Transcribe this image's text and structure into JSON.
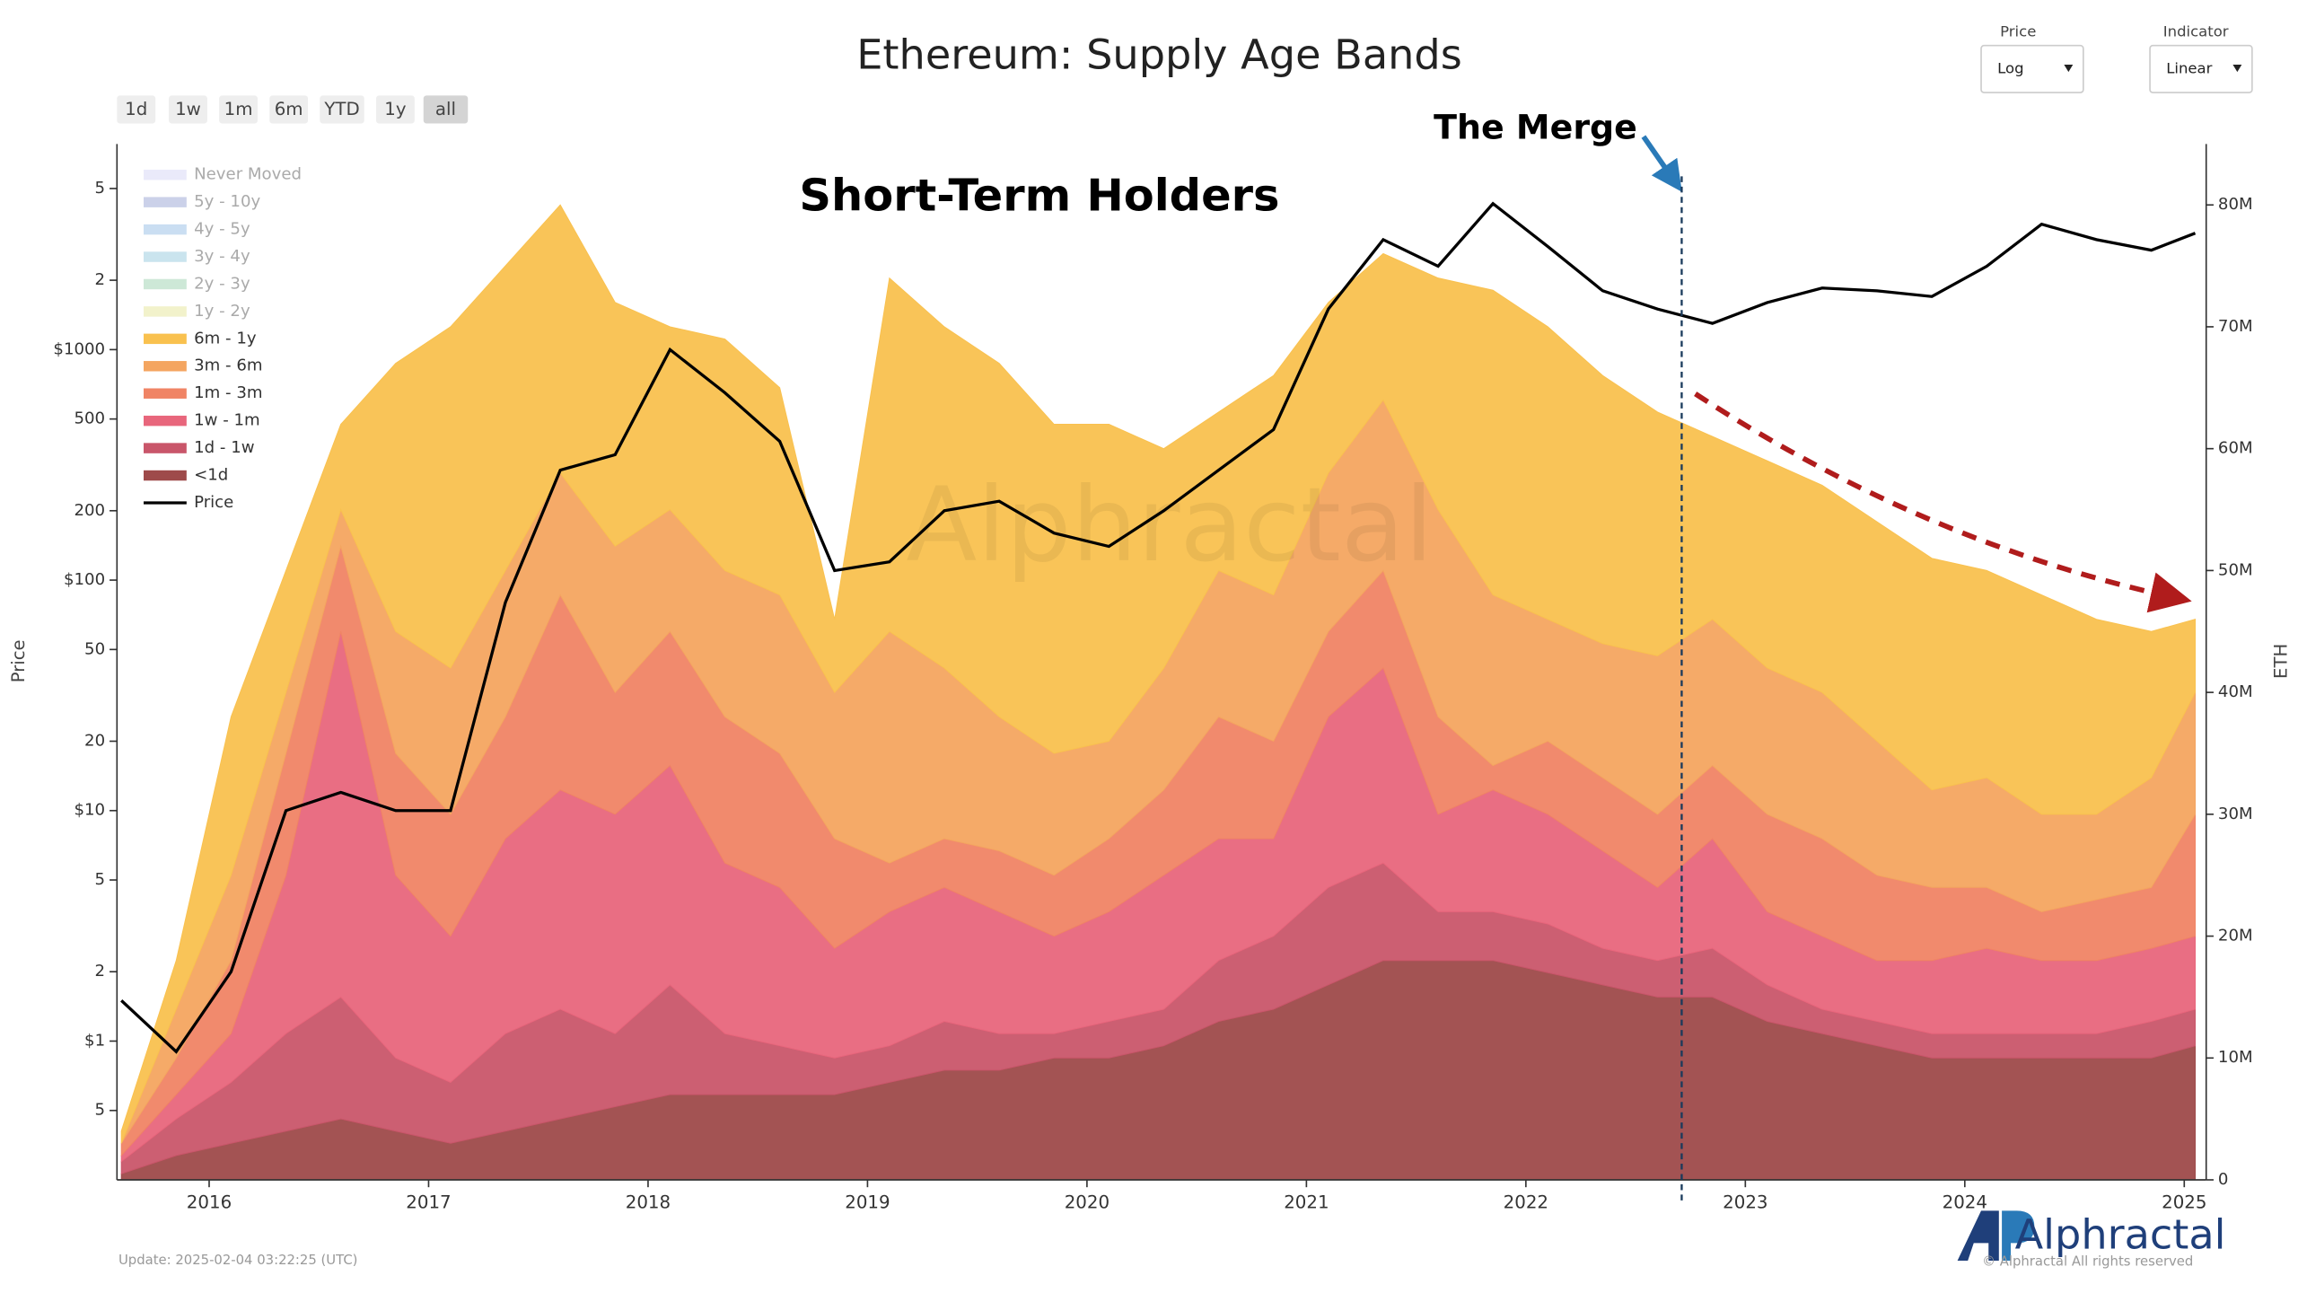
{
  "ui": {
    "range_buttons": [
      "1d",
      "1w",
      "1m",
      "6m",
      "YTD",
      "1y",
      "all"
    ],
    "active_range": 6,
    "price_control": {
      "label": "Price",
      "value": "Log"
    },
    "indicator_control": {
      "label": "Indicator",
      "value": "Linear"
    },
    "update": "Update: 2025-02-04 03:22:25 (UTC)",
    "logo": "Alphractal",
    "copyright": "© Alphractal All rights reserved",
    "watermark": "Alphractal"
  },
  "chart_data": {
    "type": "stacked-area",
    "title": "Ethereum: Supply Age Bands",
    "annotation": "Short-Term Holders",
    "event": {
      "label": "The Merge",
      "x": 2022.71
    },
    "y_label": "Price",
    "y2_label": "ETH",
    "log_scale_y": true,
    "x": [
      2015.6,
      2015.85,
      2016.1,
      2016.35,
      2016.6,
      2016.85,
      2017.1,
      2017.35,
      2017.6,
      2017.85,
      2018.1,
      2018.35,
      2018.6,
      2018.85,
      2019.1,
      2019.35,
      2019.6,
      2019.85,
      2020.1,
      2020.35,
      2020.6,
      2020.85,
      2021.1,
      2021.35,
      2021.6,
      2021.85,
      2022.1,
      2022.35,
      2022.6,
      2022.85,
      2023.1,
      2023.35,
      2023.6,
      2023.85,
      2024.1,
      2024.35,
      2024.6,
      2024.85,
      2025.05
    ],
    "xlim": [
      2015.58,
      2025.1
    ],
    "xticks": [
      2016,
      2017,
      2018,
      2019,
      2020,
      2021,
      2022,
      2023,
      2024,
      2025
    ],
    "ylim": [
      0.25,
      7800
    ],
    "yticks": [
      {
        "value": 0.5,
        "label": "5"
      },
      {
        "value": 1,
        "label": "$1"
      },
      2,
      5,
      {
        "value": 10,
        "label": "$10"
      },
      20,
      50,
      {
        "value": 100,
        "label": "$100"
      },
      200,
      500,
      {
        "value": 1000,
        "label": "$1000"
      },
      {
        "value": 2000,
        "label": "2"
      },
      {
        "value": 5000,
        "label": "5"
      }
    ],
    "y2lim": [
      0,
      85
    ],
    "y2ticks": [
      0,
      {
        "value": 10,
        "label": "10M"
      },
      {
        "value": 20,
        "label": "20M"
      },
      {
        "value": 30,
        "label": "30M"
      },
      {
        "value": 40,
        "label": "40M"
      },
      {
        "value": 50,
        "label": "50M"
      },
      {
        "value": 60,
        "label": "60M"
      },
      {
        "value": 70,
        "label": "70M"
      },
      {
        "value": 80,
        "label": "80M"
      }
    ],
    "hidden_series": [
      {
        "name": "Never Moved",
        "color": "#dcdcf6"
      },
      {
        "name": "5y - 10y",
        "color": "#a9b3da"
      },
      {
        "name": "4y - 5y",
        "color": "#a6c8ea"
      },
      {
        "name": "3y - 4y",
        "color": "#a6d2e2"
      },
      {
        "name": "2y - 3y",
        "color": "#acd9bd"
      },
      {
        "name": "1y - 2y",
        "color": "#e9e9a9"
      }
    ],
    "series": [
      {
        "name": "6m - 1y",
        "color": "#f9c14f",
        "axis": "y2",
        "values": [
          1,
          4,
          13,
          10,
          7,
          22,
          28,
          25,
          22,
          20,
          15,
          19,
          17,
          6,
          29,
          28,
          29,
          27,
          26,
          18,
          13,
          18,
          14,
          12,
          19,
          25,
          24,
          22,
          20,
          15,
          17,
          17,
          18,
          19,
          17,
          18,
          16,
          12,
          6
        ]
      },
      {
        "name": "3m - 6m",
        "color": "#f4a560",
        "axis": "y2",
        "values": [
          0,
          4,
          7,
          5,
          3,
          10,
          12,
          12,
          10,
          12,
          10,
          12,
          13,
          12,
          19,
          14,
          11,
          10,
          8,
          10,
          12,
          12,
          13,
          14,
          17,
          14,
          10,
          11,
          13,
          12,
          12,
          12,
          11,
          8,
          9,
          8,
          7,
          9,
          10
        ]
      },
      {
        "name": "1m - 3m",
        "color": "#f08465",
        "axis": "y2",
        "values": [
          1,
          3,
          6,
          10,
          7,
          10,
          10,
          10,
          16,
          10,
          11,
          12,
          11,
          9,
          4,
          4,
          5,
          5,
          6,
          7,
          10,
          8,
          7,
          8,
          8,
          2,
          6,
          6,
          6,
          6,
          8,
          8,
          7,
          6,
          5,
          4,
          5,
          5,
          10
        ]
      },
      {
        "name": "1w - 1m",
        "color": "#e8667c",
        "axis": "y2",
        "values": [
          0.5,
          2,
          4,
          13,
          30,
          15,
          12,
          16,
          18,
          18,
          18,
          14,
          13,
          9,
          11,
          11,
          10,
          8,
          9,
          11,
          10,
          8,
          14,
          16,
          8,
          10,
          9,
          8,
          6,
          9,
          6,
          6,
          5,
          6,
          7,
          6,
          6,
          6,
          6
        ]
      },
      {
        "name": "1d - 1w",
        "color": "#c9566a",
        "axis": "y2",
        "values": [
          1,
          3,
          5,
          8,
          10,
          6,
          5,
          8,
          9,
          6,
          9,
          5,
          4,
          3,
          3,
          4,
          3,
          2,
          3,
          3,
          5,
          6,
          8,
          8,
          4,
          4,
          4,
          3,
          3,
          4,
          3,
          2,
          2,
          2,
          2,
          2,
          2,
          3,
          3
        ]
      },
      {
        "name": "<1d",
        "color": "#9e4a4a",
        "axis": "y2",
        "values": [
          0.5,
          2,
          3,
          4,
          5,
          4,
          3,
          4,
          5,
          6,
          7,
          7,
          7,
          7,
          8,
          9,
          9,
          10,
          10,
          11,
          13,
          14,
          16,
          18,
          18,
          18,
          17,
          16,
          15,
          15,
          13,
          12,
          11,
          10,
          10,
          10,
          10,
          10,
          11
        ]
      },
      {
        "name": "Price",
        "color": "#000000",
        "axis": "y",
        "values": [
          1.5,
          0.9,
          2,
          10,
          12,
          10,
          10,
          80,
          300,
          350,
          1000,
          650,
          400,
          110,
          120,
          200,
          220,
          160,
          140,
          200,
          300,
          450,
          1500,
          3000,
          2300,
          4300,
          2800,
          1800,
          1500,
          1300,
          1600,
          1850,
          1800,
          1700,
          2300,
          3500,
          3000,
          2700,
          3200
        ]
      }
    ]
  }
}
